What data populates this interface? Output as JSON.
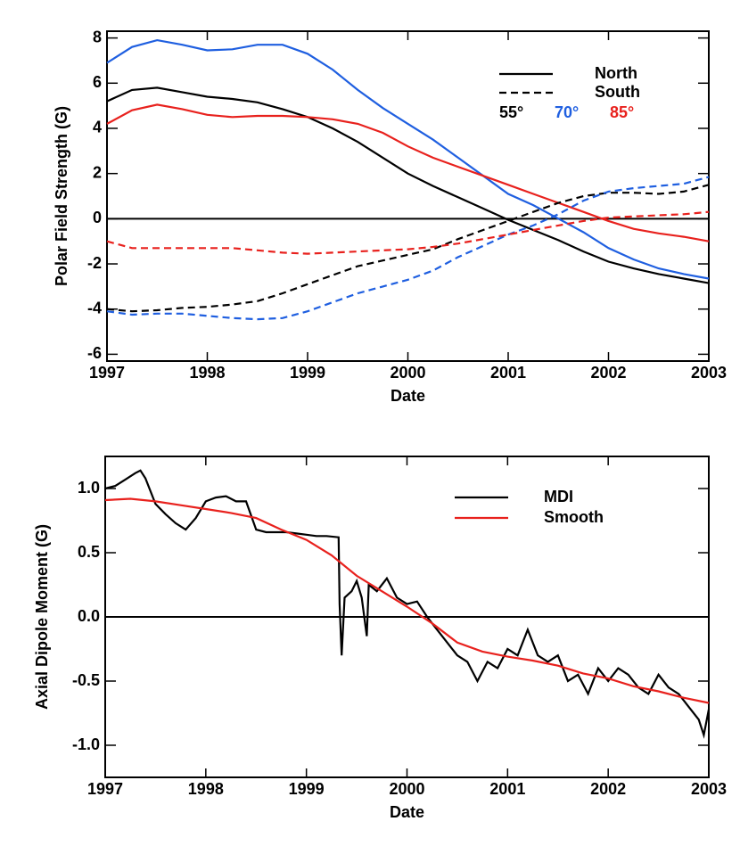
{
  "chart_data": [
    {
      "type": "line",
      "xlabel": "Date",
      "ylabel": "Polar Field Strength (G)",
      "xlim": [
        1997,
        2003
      ],
      "xticks": [
        1997,
        1998,
        1999,
        2000,
        2001,
        2002,
        2003
      ],
      "ylim": [
        -6.3,
        8.3
      ],
      "yticks": [
        -6,
        -4,
        -2,
        0,
        2,
        4,
        6,
        8
      ],
      "zero_line": true,
      "legend": {
        "position": "upper right",
        "styles": [
          {
            "name": "North",
            "dash": "solid"
          },
          {
            "name": "South",
            "dash": "dashed"
          }
        ],
        "latitudes": [
          {
            "label": "55°",
            "color": "#000000"
          },
          {
            "label": "70°",
            "color": "#1f5fe0"
          },
          {
            "label": "85°",
            "color": "#e8211d"
          }
        ]
      },
      "x": [
        1997,
        1997.25,
        1997.5,
        1997.75,
        1998,
        1998.25,
        1998.5,
        1998.75,
        1999,
        1999.25,
        1999.5,
        1999.75,
        2000,
        2000.25,
        2000.5,
        2000.75,
        2001,
        2001.25,
        2001.5,
        2001.75,
        2002,
        2002.25,
        2002.5,
        2002.75,
        2003
      ],
      "series": [
        {
          "color": "#000000",
          "dash": "solid",
          "values": [
            5.2,
            5.7,
            5.8,
            5.6,
            5.4,
            5.3,
            5.15,
            4.85,
            4.5,
            4.0,
            3.4,
            2.7,
            2.0,
            1.45,
            0.95,
            0.45,
            -0.05,
            -0.5,
            -0.95,
            -1.45,
            -1.9,
            -2.2,
            -2.45,
            -2.65,
            -2.85
          ]
        },
        {
          "color": "#1f5fe0",
          "dash": "solid",
          "values": [
            6.9,
            7.6,
            7.9,
            7.7,
            7.45,
            7.5,
            7.7,
            7.7,
            7.3,
            6.6,
            5.7,
            4.9,
            4.2,
            3.5,
            2.7,
            1.9,
            1.1,
            0.6,
            0.0,
            -0.6,
            -1.3,
            -1.8,
            -2.2,
            -2.45,
            -2.65
          ]
        },
        {
          "color": "#e8211d",
          "dash": "solid",
          "values": [
            4.2,
            4.8,
            5.05,
            4.85,
            4.6,
            4.5,
            4.55,
            4.55,
            4.5,
            4.4,
            4.2,
            3.8,
            3.2,
            2.7,
            2.3,
            1.9,
            1.5,
            1.1,
            0.7,
            0.3,
            -0.1,
            -0.45,
            -0.65,
            -0.8,
            -1.0
          ]
        },
        {
          "color": "#000000",
          "dash": "dashed",
          "values": [
            -4.0,
            -4.1,
            -4.05,
            -3.95,
            -3.9,
            -3.8,
            -3.65,
            -3.3,
            -2.9,
            -2.5,
            -2.1,
            -1.85,
            -1.6,
            -1.35,
            -0.9,
            -0.5,
            -0.1,
            0.3,
            0.7,
            1.0,
            1.15,
            1.15,
            1.1,
            1.2,
            1.5
          ]
        },
        {
          "color": "#1f5fe0",
          "dash": "dashed",
          "values": [
            -4.1,
            -4.25,
            -4.2,
            -4.2,
            -4.3,
            -4.4,
            -4.45,
            -4.4,
            -4.1,
            -3.7,
            -3.3,
            -3.0,
            -2.7,
            -2.3,
            -1.7,
            -1.2,
            -0.7,
            -0.3,
            0.2,
            0.8,
            1.2,
            1.35,
            1.45,
            1.55,
            1.85
          ]
        },
        {
          "color": "#e8211d",
          "dash": "dashed",
          "values": [
            -1.0,
            -1.3,
            -1.3,
            -1.3,
            -1.3,
            -1.3,
            -1.4,
            -1.5,
            -1.55,
            -1.5,
            -1.45,
            -1.4,
            -1.35,
            -1.25,
            -1.1,
            -0.9,
            -0.7,
            -0.5,
            -0.3,
            -0.1,
            0.05,
            0.1,
            0.15,
            0.2,
            0.3
          ]
        }
      ]
    },
    {
      "type": "line",
      "xlabel": "Date",
      "ylabel": "Axial Dipole Moment (G)",
      "xlim": [
        1997,
        2003
      ],
      "xticks": [
        1997,
        1998,
        1999,
        2000,
        2001,
        2002,
        2003
      ],
      "ylim": [
        -1.25,
        1.25
      ],
      "yticks": [
        {
          "value": -1,
          "label": "-1.0"
        },
        {
          "value": -0.5,
          "label": "-0.5"
        },
        {
          "value": 0,
          "label": "0.0"
        },
        {
          "value": 0.5,
          "label": "0.5"
        },
        {
          "value": 1,
          "label": "1.0"
        }
      ],
      "zero_line": true,
      "legend_position": "upper right",
      "series": [
        {
          "name": "MDI",
          "color": "#000000",
          "dash": "solid",
          "x": [
            1997.0,
            1997.1,
            1997.2,
            1997.3,
            1997.35,
            1997.4,
            1997.5,
            1997.6,
            1997.7,
            1997.8,
            1997.9,
            1998.0,
            1998.1,
            1998.2,
            1998.3,
            1998.4,
            1998.5,
            1998.6,
            1998.7,
            1998.8,
            1998.9,
            1999.0,
            1999.1,
            1999.2,
            1999.32,
            1999.33,
            1999.35,
            1999.38,
            1999.45,
            1999.5,
            1999.55,
            1999.6,
            1999.62,
            1999.7,
            1999.8,
            1999.9,
            2000.0,
            2000.1,
            2000.2,
            2000.3,
            2000.4,
            2000.5,
            2000.6,
            2000.7,
            2000.8,
            2000.9,
            2001.0,
            2001.1,
            2001.2,
            2001.3,
            2001.4,
            2001.5,
            2001.6,
            2001.7,
            2001.8,
            2001.9,
            2002.0,
            2002.1,
            2002.2,
            2002.3,
            2002.4,
            2002.5,
            2002.6,
            2002.7,
            2002.8,
            2002.9,
            2002.95,
            2003.0
          ],
          "values": [
            1.0,
            1.02,
            1.07,
            1.12,
            1.14,
            1.08,
            0.88,
            0.8,
            0.73,
            0.68,
            0.77,
            0.9,
            0.93,
            0.94,
            0.9,
            0.9,
            0.68,
            0.66,
            0.66,
            0.66,
            0.65,
            0.64,
            0.63,
            0.63,
            0.62,
            0.1,
            -0.3,
            0.15,
            0.2,
            0.28,
            0.15,
            -0.15,
            0.25,
            0.2,
            0.3,
            0.15,
            0.1,
            0.12,
            0.0,
            -0.1,
            -0.2,
            -0.3,
            -0.35,
            -0.5,
            -0.35,
            -0.4,
            -0.25,
            -0.3,
            -0.1,
            -0.3,
            -0.35,
            -0.3,
            -0.5,
            -0.45,
            -0.6,
            -0.4,
            -0.5,
            -0.4,
            -0.45,
            -0.55,
            -0.6,
            -0.45,
            -0.55,
            -0.6,
            -0.7,
            -0.8,
            -0.92,
            -0.72
          ]
        },
        {
          "name": "Smooth",
          "color": "#e8211d",
          "dash": "solid",
          "x": [
            1997,
            1997.25,
            1997.5,
            1997.75,
            1998,
            1998.25,
            1998.5,
            1998.75,
            1999,
            1999.25,
            1999.5,
            1999.75,
            2000,
            2000.25,
            2000.5,
            2000.75,
            2001,
            2001.25,
            2001.5,
            2001.75,
            2002,
            2002.25,
            2002.5,
            2002.75,
            2003
          ],
          "values": [
            0.91,
            0.92,
            0.9,
            0.87,
            0.84,
            0.81,
            0.77,
            0.68,
            0.6,
            0.48,
            0.32,
            0.2,
            0.08,
            -0.05,
            -0.2,
            -0.27,
            -0.31,
            -0.34,
            -0.38,
            -0.44,
            -0.48,
            -0.54,
            -0.58,
            -0.63,
            -0.67
          ]
        }
      ]
    }
  ]
}
